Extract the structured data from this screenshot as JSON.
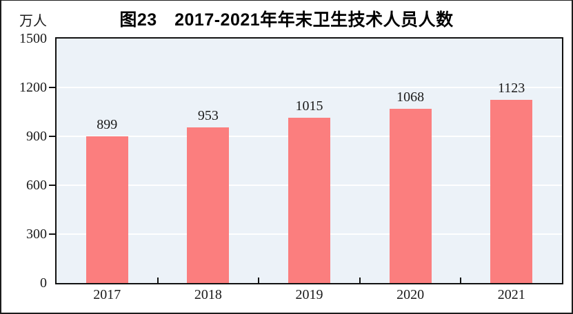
{
  "figure": {
    "title": "图23　2017-2021年年末卫生技术人员人数",
    "unit_label": "万人"
  },
  "chart_data": {
    "type": "bar",
    "title": "图23　2017-2021年年末卫生技术人员人数",
    "ylabel": "万人",
    "xlabel": "",
    "categories": [
      "2017",
      "2018",
      "2019",
      "2020",
      "2021"
    ],
    "values": [
      899,
      953,
      1015,
      1068,
      1123
    ],
    "ylim": [
      0,
      1500
    ],
    "yticks": [
      0,
      300,
      600,
      900,
      1200,
      1500
    ],
    "grid": true,
    "legend": "none",
    "bar_color": "#FB7E7E",
    "plot_bg_color": "#ECF2F8",
    "gridline_color": "#FFFFFF",
    "axis_color": "#111111",
    "text_color": "#1A1A1A"
  }
}
